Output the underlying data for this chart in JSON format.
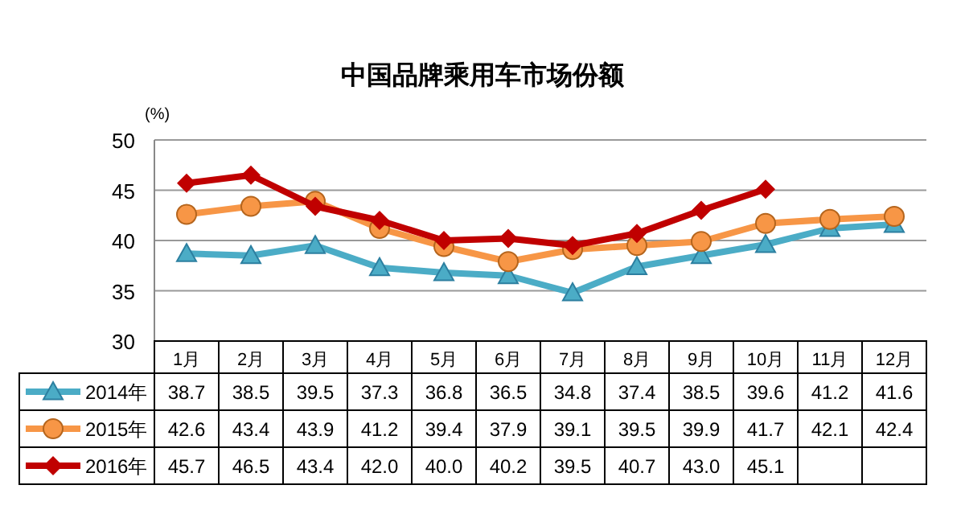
{
  "chart_data": {
    "type": "line",
    "title": "中国品牌乘用车市场份额",
    "ylabel": "(%)",
    "categories": [
      "1月",
      "2月",
      "3月",
      "4月",
      "5月",
      "6月",
      "7月",
      "8月",
      "9月",
      "10月",
      "11月",
      "12月"
    ],
    "series": [
      {
        "name": "2014年",
        "color": "#4bacc6",
        "marker": "triangle",
        "values": [
          38.7,
          38.5,
          39.5,
          37.3,
          36.8,
          36.5,
          34.8,
          37.4,
          38.5,
          39.6,
          41.2,
          41.6
        ],
        "value_labels": [
          "38.7",
          "38.5",
          "39.5",
          "37.3",
          "36.8",
          "36.5",
          "34.8",
          "37.4",
          "38.5",
          "39.6",
          "41.2",
          "41.6"
        ]
      },
      {
        "name": "2015年",
        "color": "#f79646",
        "marker": "circle",
        "values": [
          42.6,
          43.4,
          43.9,
          41.2,
          39.4,
          37.9,
          39.1,
          39.5,
          39.9,
          41.7,
          42.1,
          42.4
        ],
        "value_labels": [
          "42.6",
          "43.4",
          "43.9",
          "41.2",
          "39.4",
          "37.9",
          "39.1",
          "39.5",
          "39.9",
          "41.7",
          "42.1",
          "42.4"
        ]
      },
      {
        "name": "2016年",
        "color": "#c00000",
        "marker": "diamond",
        "values": [
          45.7,
          46.5,
          43.4,
          42.0,
          40.0,
          40.2,
          39.5,
          40.7,
          43.0,
          45.1,
          null,
          null
        ],
        "value_labels": [
          "45.7",
          "46.5",
          "43.4",
          "42.0",
          "40.0",
          "40.2",
          "39.5",
          "40.7",
          "43.0",
          "45.1",
          null,
          null
        ]
      }
    ],
    "ylim": [
      30,
      50
    ],
    "yticks": [
      30,
      35,
      40,
      45,
      50
    ],
    "grid": "y",
    "legend": "bottom",
    "line_style": "solid"
  }
}
